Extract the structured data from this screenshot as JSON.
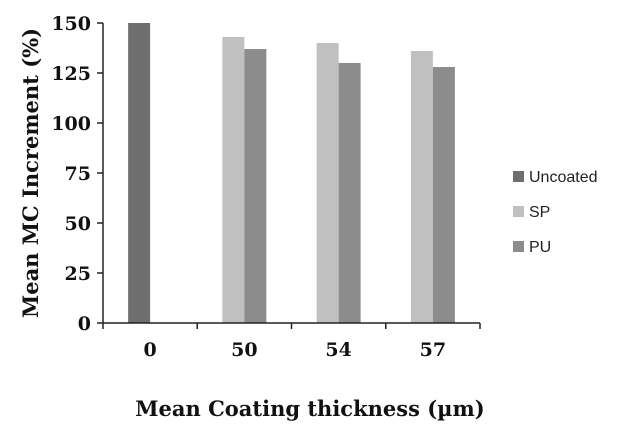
{
  "chart_data": {
    "type": "bar",
    "title": "",
    "xlabel": "Mean Coating thickness (µm)",
    "ylabel": "Mean MC Increment  (%)",
    "categories": [
      "0",
      "50",
      "54",
      "57"
    ],
    "series": [
      {
        "name": "Uncoated",
        "color": "#6e6e6e",
        "values": [
          150,
          null,
          null,
          null
        ]
      },
      {
        "name": "SP",
        "color": "#c0c0c0",
        "values": [
          null,
          143,
          140,
          136
        ]
      },
      {
        "name": "PU",
        "color": "#8c8c8c",
        "values": [
          null,
          137,
          130,
          128
        ]
      }
    ],
    "ylim": [
      0,
      150
    ],
    "yticks": [
      "0",
      "25",
      "50",
      "75",
      "100",
      "125",
      "150"
    ],
    "grid": false,
    "legend_position": "right"
  }
}
